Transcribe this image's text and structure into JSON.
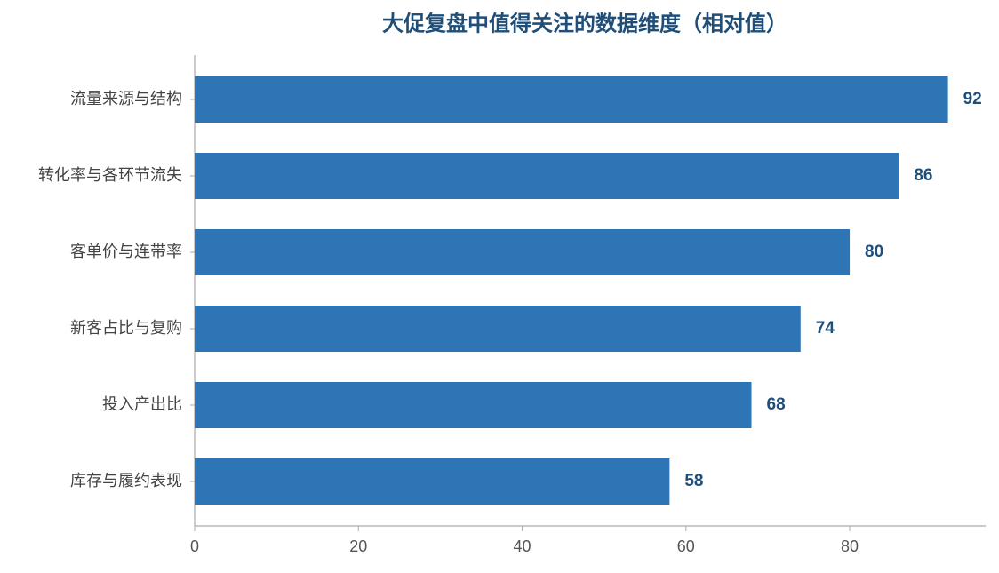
{
  "chart_data": {
    "type": "bar",
    "orientation": "horizontal",
    "title": "大促复盘中值得关注的数据维度（相对值）",
    "categories": [
      "流量来源与结构",
      "转化率与各环节流失",
      "客单价与连带率",
      "新客占比与复购",
      "投入产出比",
      "库存与履约表现"
    ],
    "values": [
      92,
      86,
      80,
      74,
      68,
      58
    ],
    "color": "#2e75b6",
    "xlim": [
      0,
      96.6
    ],
    "xticks": [
      0,
      20,
      40,
      60,
      80
    ],
    "grid": false
  }
}
